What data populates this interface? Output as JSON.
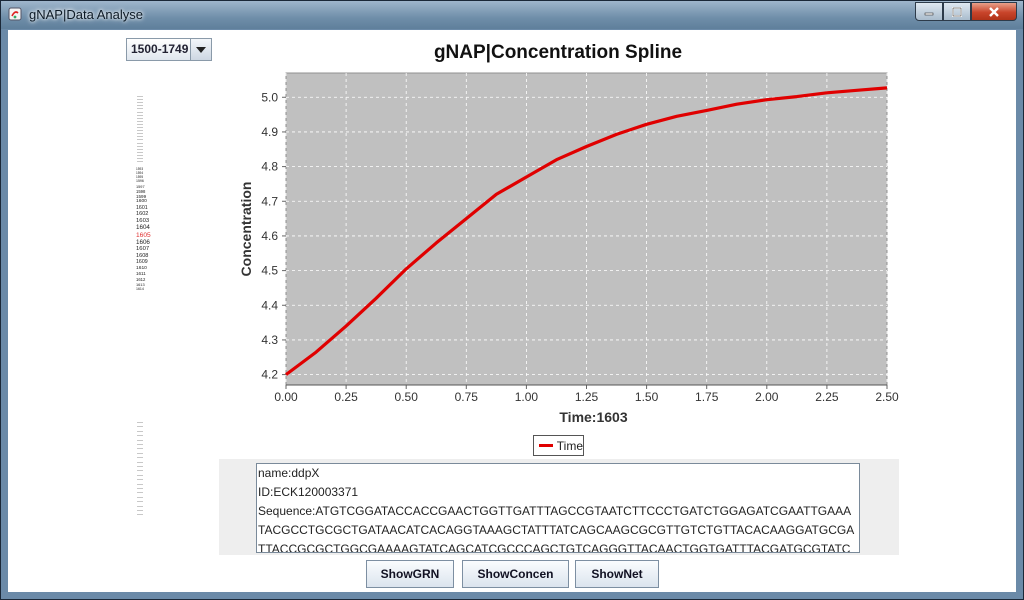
{
  "window": {
    "title": "gNAP|Data Analyse"
  },
  "range_select": {
    "value": "1500-1749"
  },
  "timepoint_list": {
    "items": [
      "1593",
      "1594",
      "1595",
      "1596",
      "1597",
      "1598",
      "1599",
      "1600",
      "1601",
      "1602",
      "1603",
      "1604",
      "1605",
      "1606",
      "1607",
      "1608",
      "1609",
      "1610",
      "1611",
      "1612",
      "1613",
      "1614"
    ],
    "selected": "1605",
    "selected_color": "#e03030"
  },
  "chart_data": {
    "type": "line",
    "title": "gNAP|Concentration Spline",
    "xlabel": "Time:1603",
    "ylabel": "Concentration",
    "xlim": [
      0,
      2.5
    ],
    "ylim": [
      4.17,
      5.07
    ],
    "x_ticks": [
      "0.00",
      "0.25",
      "0.50",
      "0.75",
      "1.00",
      "1.25",
      "1.50",
      "1.75",
      "2.00",
      "2.25",
      "2.50"
    ],
    "y_ticks": [
      "4.2",
      "4.3",
      "4.4",
      "4.5",
      "4.6",
      "4.7",
      "4.8",
      "4.9",
      "5.0"
    ],
    "grid": true,
    "legend_position": "bottom-center",
    "series": [
      {
        "name": "Time",
        "color": "#e00000",
        "x": [
          0,
          0.125,
          0.25,
          0.375,
          0.5,
          0.625,
          0.75,
          0.875,
          1.0,
          1.125,
          1.25,
          1.375,
          1.5,
          1.625,
          1.75,
          1.875,
          2.0,
          2.125,
          2.25,
          2.375,
          2.5
        ],
        "y": [
          4.2,
          4.265,
          4.34,
          4.42,
          4.505,
          4.58,
          4.65,
          4.72,
          4.77,
          4.82,
          4.858,
          4.893,
          4.922,
          4.945,
          4.962,
          4.98,
          4.993,
          5.002,
          5.013,
          5.02,
          5.027
        ]
      }
    ]
  },
  "gene_info": {
    "lines": [
      "name:ddpX",
      "ID:ECK120003371",
      "Sequence:ATGTCGGATACCACCGAACTGGTTGATTTAGCCGTAATCTTCCCTGATCTGGAGATCGAATTGAAA",
      "TACGCCTGCGCTGATAACATCACAGGTAAAGCTATTTATCAGCAAGCGCGTTGTCTGTTACACAAGGATGCGA",
      "TTACCGCGCTGGCGAAAAGTATCAGCATCGCCCAGCTGTCAGGGTTACAACTGGTGATTTACGATGCGTATC"
    ]
  },
  "buttons": {
    "show_grn": "ShowGRN",
    "show_concen": "ShowConcen",
    "show_net": "ShowNet"
  }
}
